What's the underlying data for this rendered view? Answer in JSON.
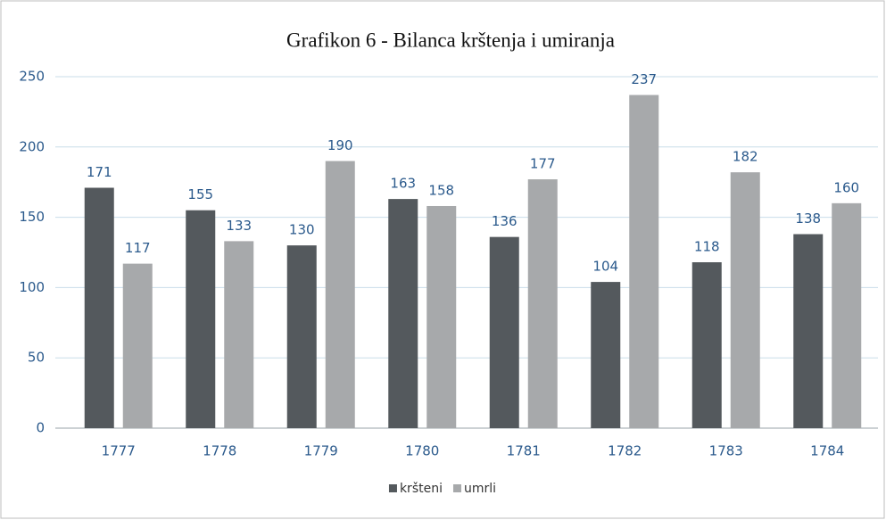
{
  "chart_data": {
    "type": "bar",
    "title": "Grafikon 6 - Bilanca krštenja i umiranja",
    "categories": [
      "1777",
      "1778",
      "1779",
      "1780",
      "1781",
      "1782",
      "1783",
      "1784"
    ],
    "series": [
      {
        "name": "kršteni",
        "color": "#54595d",
        "values": [
          171,
          155,
          130,
          163,
          136,
          104,
          118,
          138
        ]
      },
      {
        "name": "umrli",
        "color": "#a7a9ab",
        "values": [
          117,
          133,
          190,
          158,
          177,
          237,
          182,
          160
        ]
      }
    ],
    "ylim": [
      0,
      250
    ],
    "yticks": [
      0,
      50,
      100,
      150,
      200,
      250
    ],
    "grid": true,
    "legend": "bottom"
  }
}
